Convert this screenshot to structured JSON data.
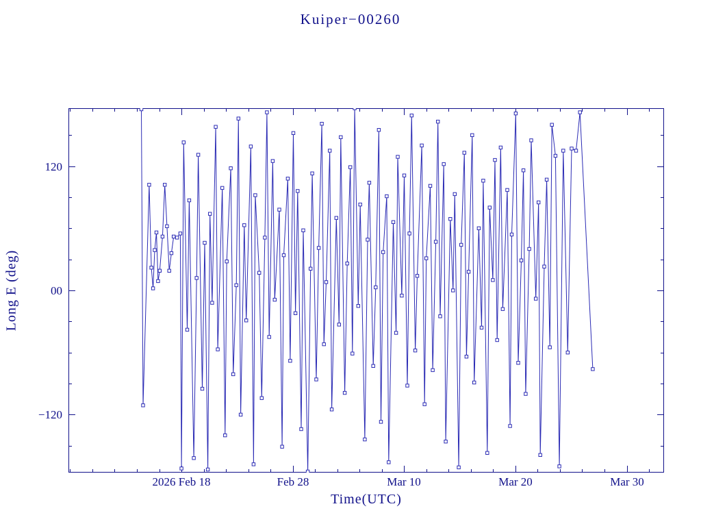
{
  "chart_data": {
    "type": "line",
    "title": "Kuiper−00260",
    "xlabel": "Time(UTC)",
    "ylabel": "Long E (deg)",
    "marker": "open-square",
    "axis_color": "#10108a",
    "data_color": "#2a2ab4",
    "x_unit": "days since 2026-02-08 00:00 UTC",
    "xlim": [
      -0.15,
      53.35
    ],
    "ylim": [
      -176,
      176
    ],
    "x_ticks": [
      {
        "pos": 10,
        "label": "2026 Feb 18"
      },
      {
        "pos": 20,
        "label": "Feb 28"
      },
      {
        "pos": 30,
        "label": "Mar 10"
      },
      {
        "pos": 40,
        "label": "Mar 20"
      },
      {
        "pos": 50,
        "label": "Mar 30"
      }
    ],
    "y_ticks": [
      {
        "pos": 120,
        "label": "120"
      },
      {
        "pos": 0,
        "label": "00"
      },
      {
        "pos": -120,
        "label": "−120"
      }
    ],
    "minor_x_step": 2,
    "minor_y_step": 30,
    "series": [
      {
        "name": "Long E",
        "points": [
          [
            6.4,
            175
          ],
          [
            6.55,
            -111
          ],
          [
            7.1,
            102
          ],
          [
            7.3,
            22
          ],
          [
            7.45,
            2
          ],
          [
            7.6,
            39
          ],
          [
            7.75,
            56
          ],
          [
            7.9,
            9
          ],
          [
            8.05,
            19
          ],
          [
            8.3,
            52
          ],
          [
            8.5,
            102
          ],
          [
            8.7,
            62
          ],
          [
            8.9,
            19
          ],
          [
            9.1,
            36
          ],
          [
            9.3,
            52
          ],
          [
            9.6,
            51
          ],
          [
            9.9,
            55
          ],
          [
            10.0,
            -172
          ],
          [
            10.2,
            143
          ],
          [
            10.52,
            -38
          ],
          [
            10.7,
            87
          ],
          [
            11.11,
            -162
          ],
          [
            11.36,
            12
          ],
          [
            11.51,
            131
          ],
          [
            11.87,
            -95
          ],
          [
            12.09,
            46
          ],
          [
            12.37,
            -173
          ],
          [
            12.56,
            74
          ],
          [
            12.76,
            -12
          ],
          [
            13.08,
            158
          ],
          [
            13.26,
            -57
          ],
          [
            13.67,
            99
          ],
          [
            13.92,
            -140
          ],
          [
            14.07,
            28
          ],
          [
            14.43,
            118
          ],
          [
            14.65,
            -81
          ],
          [
            14.93,
            5
          ],
          [
            15.12,
            166
          ],
          [
            15.32,
            -120
          ],
          [
            15.64,
            63
          ],
          [
            15.82,
            -29
          ],
          [
            16.23,
            139
          ],
          [
            16.48,
            -168
          ],
          [
            16.63,
            92
          ],
          [
            16.99,
            17
          ],
          [
            17.21,
            -104
          ],
          [
            17.49,
            51
          ],
          [
            17.68,
            172
          ],
          [
            17.88,
            -45
          ],
          [
            18.2,
            125
          ],
          [
            18.38,
            -9
          ],
          [
            18.79,
            78
          ],
          [
            19.04,
            -151
          ],
          [
            19.19,
            34
          ],
          [
            19.55,
            108
          ],
          [
            19.77,
            -68
          ],
          [
            20.05,
            152
          ],
          [
            20.24,
            -22
          ],
          [
            20.44,
            96
          ],
          [
            20.76,
            -134
          ],
          [
            20.94,
            58
          ],
          [
            21.35,
            -175
          ],
          [
            21.6,
            21
          ],
          [
            21.75,
            113
          ],
          [
            22.11,
            -86
          ],
          [
            22.33,
            41
          ],
          [
            22.61,
            161
          ],
          [
            22.8,
            -52
          ],
          [
            23.0,
            8
          ],
          [
            23.32,
            135
          ],
          [
            23.5,
            -115
          ],
          [
            23.91,
            70
          ],
          [
            24.16,
            -33
          ],
          [
            24.31,
            148
          ],
          [
            24.67,
            -99
          ],
          [
            24.89,
            26
          ],
          [
            25.17,
            119
          ],
          [
            25.36,
            -61
          ],
          [
            25.56,
            176
          ],
          [
            25.88,
            -15
          ],
          [
            26.06,
            83
          ],
          [
            26.47,
            -144
          ],
          [
            26.72,
            49
          ],
          [
            26.87,
            104
          ],
          [
            27.23,
            -73
          ],
          [
            27.45,
            3
          ],
          [
            27.73,
            155
          ],
          [
            27.92,
            -127
          ],
          [
            28.12,
            37
          ],
          [
            28.44,
            91
          ],
          [
            28.62,
            -166
          ],
          [
            29.03,
            66
          ],
          [
            29.28,
            -41
          ],
          [
            29.43,
            129
          ],
          [
            29.79,
            -5
          ],
          [
            30.01,
            111
          ],
          [
            30.29,
            -92
          ],
          [
            30.48,
            55
          ],
          [
            30.68,
            169
          ],
          [
            31.0,
            -58
          ],
          [
            31.18,
            14
          ],
          [
            31.59,
            140
          ],
          [
            31.84,
            -110
          ],
          [
            31.99,
            31
          ],
          [
            32.35,
            101
          ],
          [
            32.57,
            -77
          ],
          [
            32.85,
            47
          ],
          [
            33.04,
            163
          ],
          [
            33.24,
            -25
          ],
          [
            33.56,
            122
          ],
          [
            33.74,
            -146
          ],
          [
            34.15,
            69
          ],
          [
            34.4,
            0
          ],
          [
            34.55,
            93
          ],
          [
            34.91,
            -171
          ],
          [
            35.13,
            44
          ],
          [
            35.41,
            133
          ],
          [
            35.6,
            -64
          ],
          [
            35.8,
            18
          ],
          [
            36.12,
            150
          ],
          [
            36.3,
            -89
          ],
          [
            36.71,
            60
          ],
          [
            36.96,
            -36
          ],
          [
            37.11,
            106
          ],
          [
            37.47,
            -157
          ],
          [
            37.69,
            80
          ],
          [
            37.97,
            10
          ],
          [
            38.16,
            126
          ],
          [
            38.36,
            -48
          ],
          [
            38.68,
            138
          ],
          [
            38.86,
            -18
          ],
          [
            39.27,
            97
          ],
          [
            39.52,
            -131
          ],
          [
            39.67,
            54
          ],
          [
            40.03,
            171
          ],
          [
            40.25,
            -70
          ],
          [
            40.53,
            29
          ],
          [
            40.72,
            116
          ],
          [
            40.92,
            -100
          ],
          [
            41.24,
            40
          ],
          [
            41.42,
            145
          ],
          [
            41.83,
            -8
          ],
          [
            42.08,
            85
          ],
          [
            42.23,
            -159
          ],
          [
            42.59,
            23
          ],
          [
            42.81,
            107
          ],
          [
            43.09,
            -55
          ],
          [
            43.28,
            160
          ],
          [
            43.6,
            130
          ],
          [
            43.95,
            -170
          ],
          [
            44.3,
            135
          ],
          [
            44.7,
            -60
          ],
          [
            45.05,
            137
          ],
          [
            45.45,
            135
          ],
          [
            45.8,
            172
          ],
          [
            46.95,
            -76
          ]
        ]
      }
    ]
  }
}
